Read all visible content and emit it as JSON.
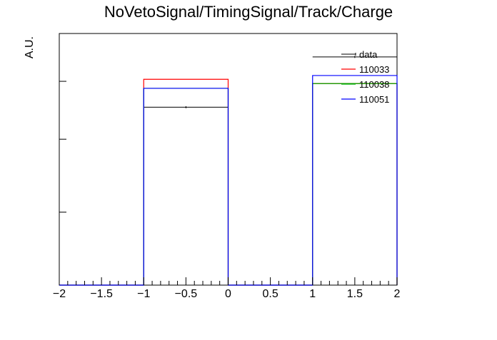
{
  "chart_data": {
    "type": "line",
    "title": "NoVetoSignal/TimingSignal/Track/Charge",
    "xlabel": "",
    "ylabel": "A.U.",
    "xlim": [
      -2,
      2
    ],
    "ylim": [
      0,
      1
    ],
    "x_ticks": [
      -2,
      -1.5,
      -1,
      -0.5,
      0,
      0.5,
      1,
      1.5,
      2
    ],
    "x_tick_labels": [
      "−2",
      "−1.5",
      "−1",
      "−0.5",
      "0",
      "0.5",
      "1",
      "1.5",
      "2"
    ],
    "y_ticks": [
      0.29,
      0.58,
      0.81,
      1.0
    ],
    "bin_edges": [
      -2,
      -1,
      0,
      1,
      2
    ],
    "legend_position": "top-right",
    "series": [
      {
        "name": "data",
        "color": "#000000",
        "style": "points",
        "values": [
          0,
          0.707,
          0,
          0.907
        ]
      },
      {
        "name": "110033",
        "color": "#ff0000",
        "style": "hist",
        "values": [
          0,
          0.818,
          0,
          0.801
        ]
      },
      {
        "name": "110038",
        "color": "#00aa00",
        "style": "hist",
        "values": [
          0,
          0.782,
          0,
          0.801
        ]
      },
      {
        "name": "110051",
        "color": "#0000ff",
        "style": "hist",
        "values": [
          0,
          0.782,
          0,
          0.833
        ]
      }
    ]
  }
}
